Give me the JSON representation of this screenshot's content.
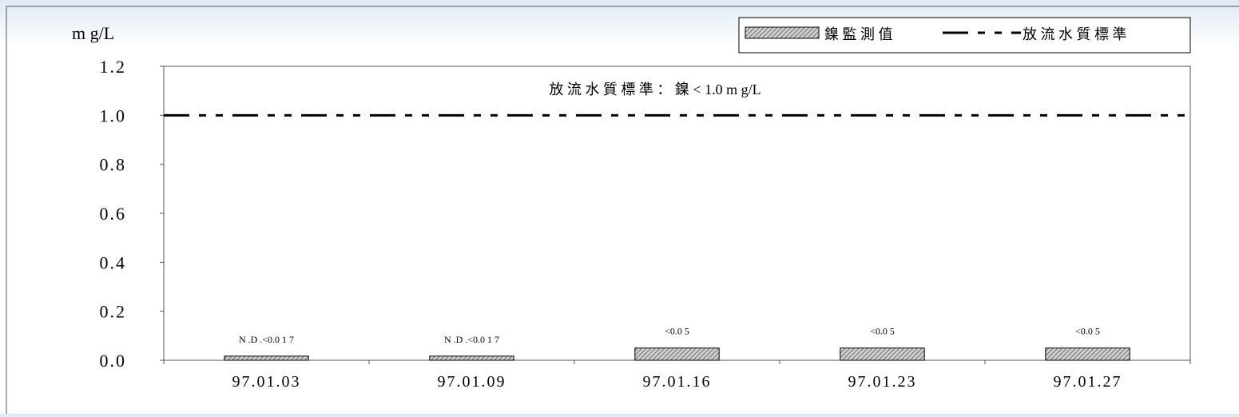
{
  "chart_data": {
    "type": "bar",
    "unit_label": "m g/L",
    "categories": [
      "97.01.03",
      "97.01.09",
      "97.01.16",
      "97.01.23",
      "97.01.27"
    ],
    "series": [
      {
        "name": "鎳 監 測 值",
        "values": [
          0.017,
          0.017,
          0.05,
          0.05,
          0.05
        ],
        "data_labels": [
          "N .D .<0.0 1 7",
          "N .D .<0.0 1 7",
          "<0.0 5",
          "<0.0 5",
          "<0.0 5"
        ],
        "color": "#8c8c8c",
        "pattern": "diagonal-hatch"
      }
    ],
    "reference_line": {
      "name": "放 流 水 質 標 準",
      "value": 1.0,
      "style": "dash-dot",
      "annotation": "放 流 水 質 標 準 ： 鎳 < 1.0 m g/L"
    },
    "y_ticks": [
      "1.2",
      "1.0",
      "0.8",
      "0.6",
      "0.4",
      "0.2",
      "0.0"
    ],
    "y_tick_values": [
      1.2,
      1.0,
      0.8,
      0.6,
      0.4,
      0.2,
      0.0
    ],
    "ylim": [
      0,
      1.2
    ],
    "legend_position": "top-right",
    "grid": false
  }
}
